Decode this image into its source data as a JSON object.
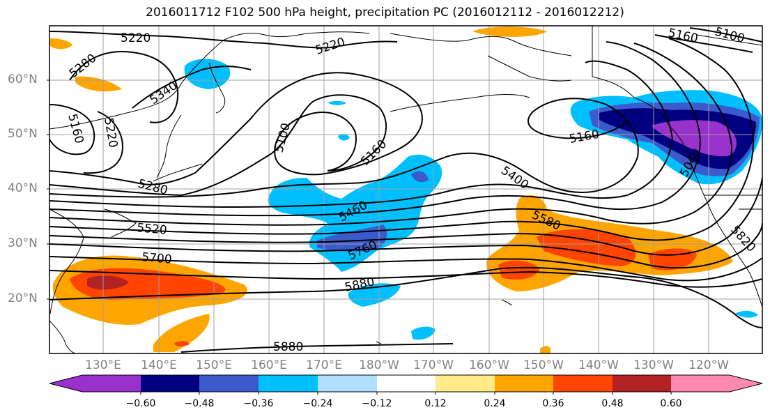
{
  "title": "2016011712 F102 500 hPa height, precipitation PC (2016012112 - 2016012212)",
  "lat_labels": [
    "60°N",
    "50°N",
    "40°N",
    "30°N",
    "20°N"
  ],
  "lon_labels": [
    "130°E",
    "140°E",
    "150°E",
    "160°E",
    "170°E",
    "180°W",
    "170°W",
    "160°W",
    "150°W",
    "140°W",
    "130°W",
    "120°W"
  ],
  "contour_labels": [
    "5220",
    "5280",
    "5340",
    "5160",
    "5220",
    "5220",
    "5100",
    "5160",
    "5280",
    "5460",
    "5520",
    "5760",
    "5700",
    "5880",
    "5880",
    "5400",
    "5580",
    "5160",
    "5160",
    "5100",
    "5820",
    "5040"
  ],
  "colorbar": {
    "ticks": [
      "−0.60",
      "−0.48",
      "−0.36",
      "−0.24",
      "−0.12",
      "0.12",
      "0.24",
      "0.36",
      "0.48",
      "0.60"
    ],
    "colors": [
      "#9932cc",
      "#000080",
      "#3b5bcc",
      "#00bfff",
      "#b0e0ff",
      "#ffffff",
      "#ffeb8a",
      "#ffa500",
      "#ff4500",
      "#b22222",
      "#ff88b0"
    ]
  },
  "precip_colors": {
    "neg_060": "#9932cc",
    "neg_048": "#000080",
    "neg_036": "#3b5bcc",
    "neg_024": "#00bfff",
    "pos_024": "#ffa500",
    "pos_036": "#ff4500",
    "pos_048": "#b22222"
  }
}
